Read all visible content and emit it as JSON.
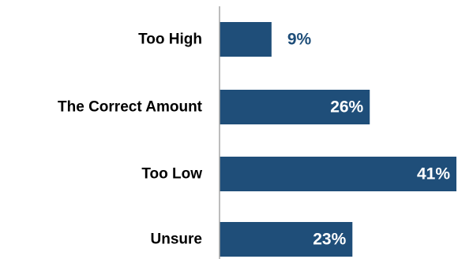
{
  "chart_data": {
    "type": "bar",
    "orientation": "horizontal",
    "categories": [
      "Too High",
      "The Correct Amount",
      "Too Low",
      "Unsure"
    ],
    "values": [
      9,
      26,
      41,
      23
    ],
    "value_labels": [
      "9%",
      "26%",
      "41%",
      "23%"
    ],
    "xlim": [
      0,
      41
    ],
    "grid": false,
    "legend": "none",
    "colors": {
      "bar": "#1f4e79",
      "label_inside": "#ffffff",
      "label_outside": "#1f4e79",
      "axis": "#a6a6a6"
    }
  }
}
